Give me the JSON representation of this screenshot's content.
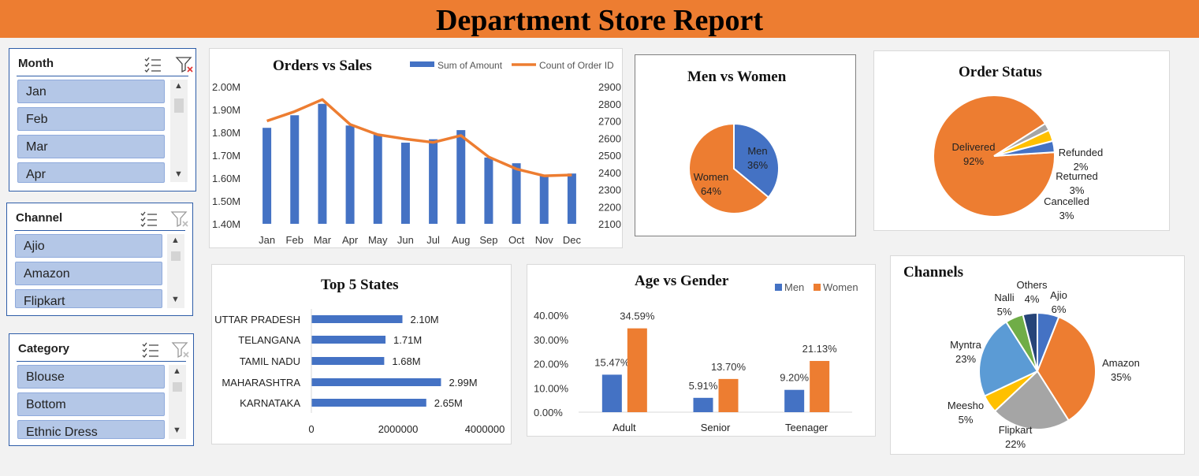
{
  "report": {
    "title": "Department Store Report"
  },
  "slicers": {
    "month": {
      "title": "Month",
      "items": [
        "Jan",
        "Feb",
        "Mar",
        "Apr"
      ]
    },
    "channel": {
      "title": "Channel",
      "items": [
        "Ajio",
        "Amazon",
        "Flipkart"
      ]
    },
    "category": {
      "title": "Category",
      "items": [
        "Blouse",
        "Bottom",
        "Ethnic Dress"
      ]
    }
  },
  "colors": {
    "blue": "#4472c4",
    "orange": "#ed7d31",
    "gray": "#a5a5a5",
    "yellow": "#ffc000",
    "lightblue": "#5b9bd5",
    "green": "#70ad47",
    "navy": "#264478"
  },
  "chart_data": [
    {
      "id": "orders_sales",
      "type": "bar",
      "title": "Orders vs Sales",
      "categories": [
        "Jan",
        "Feb",
        "Mar",
        "Apr",
        "May",
        "Jun",
        "Jul",
        "Aug",
        "Sep",
        "Oct",
        "Nov",
        "Dec"
      ],
      "series": [
        {
          "name": "Sum of Amount",
          "type": "bar",
          "axis": "left",
          "values": [
            1.82,
            1.875,
            1.925,
            1.83,
            1.79,
            1.755,
            1.77,
            1.81,
            1.69,
            1.665,
            1.61,
            1.62
          ]
        },
        {
          "name": "Count of Order ID",
          "type": "line",
          "axis": "right",
          "values": [
            2700,
            2755,
            2825,
            2680,
            2620,
            2595,
            2575,
            2615,
            2490,
            2420,
            2380,
            2385
          ]
        }
      ],
      "ylim": [
        1.4,
        2.0
      ],
      "yticks": [
        "1.40M",
        "1.50M",
        "1.60M",
        "1.70M",
        "1.80M",
        "1.90M",
        "2.00M"
      ],
      "y2lim": [
        2100,
        2900
      ],
      "y2ticks": [
        "2100",
        "2200",
        "2300",
        "2400",
        "2500",
        "2600",
        "2700",
        "2800",
        "2900"
      ],
      "legend": "top-right"
    },
    {
      "id": "men_women",
      "type": "pie",
      "title": "Men vs Women",
      "slices": [
        {
          "name": "Men",
          "value": 36,
          "label": "36%"
        },
        {
          "name": "Women",
          "value": 64,
          "label": "64%"
        }
      ]
    },
    {
      "id": "order_status",
      "type": "pie",
      "title": "Order Status",
      "slices": [
        {
          "name": "Delivered",
          "value": 92,
          "label": "92%"
        },
        {
          "name": "Refunded",
          "value": 2,
          "label": "2%"
        },
        {
          "name": "Returned",
          "value": 3,
          "label": "3%"
        },
        {
          "name": "Cancelled",
          "value": 3,
          "label": "3%"
        }
      ]
    },
    {
      "id": "top_states",
      "type": "bar",
      "orientation": "horizontal",
      "title": "Top 5 States",
      "categories": [
        "UTTAR PRADESH",
        "TELANGANA",
        "TAMIL NADU",
        "MAHARASHTRA",
        "KARNATAKA"
      ],
      "values": [
        2.1,
        1.71,
        1.68,
        2.99,
        2.65
      ],
      "labels": [
        "2.10M",
        "1.71M",
        "1.68M",
        "2.99M",
        "2.65M"
      ],
      "xlim": [
        0,
        4000000
      ],
      "xticks": [
        "0",
        "2000000",
        "4000000"
      ]
    },
    {
      "id": "age_gender",
      "type": "bar",
      "title": "Age vs Gender",
      "categories": [
        "Adult",
        "Senior",
        "Teenager"
      ],
      "series": [
        {
          "name": "Men",
          "values": [
            15.47,
            5.91,
            9.2
          ],
          "labels": [
            "15.47%",
            "5.91%",
            "9.20%"
          ]
        },
        {
          "name": "Women",
          "values": [
            34.59,
            13.7,
            21.13
          ],
          "labels": [
            "34.59%",
            "13.70%",
            "21.13%"
          ]
        }
      ],
      "ylim": [
        0,
        40
      ],
      "yticks": [
        "0.00%",
        "10.00%",
        "20.00%",
        "30.00%",
        "40.00%"
      ],
      "legend": "top-right"
    },
    {
      "id": "channels",
      "type": "pie",
      "title": "Channels",
      "slices": [
        {
          "name": "Ajio",
          "value": 6,
          "label": "6%"
        },
        {
          "name": "Amazon",
          "value": 35,
          "label": "35%"
        },
        {
          "name": "Flipkart",
          "value": 22,
          "label": "22%"
        },
        {
          "name": "Meesho",
          "value": 5,
          "label": "5%"
        },
        {
          "name": "Myntra",
          "value": 23,
          "label": "23%"
        },
        {
          "name": "Nalli",
          "value": 5,
          "label": "5%"
        },
        {
          "name": "Others",
          "value": 4,
          "label": "4%"
        }
      ]
    }
  ]
}
